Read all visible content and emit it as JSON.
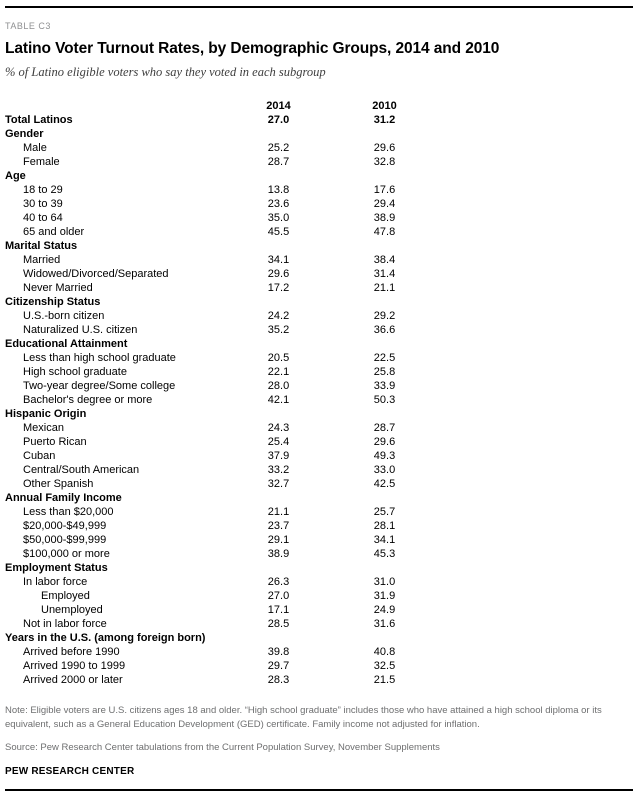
{
  "page": {
    "table_label": "TABLE C3",
    "note": "Note: Eligible voters are U.S. citizens ages 18 and older. “High school graduate” includes those who have attained a high school diploma or its equivalent, such as a General Education Development (GED) certificate. Family income not adjusted for inflation.",
    "source": "Source: Pew Research Center tabulations from the Current Population Survey, November Supplements",
    "footer_brand": "PEW RESEARCH CENTER"
  },
  "chart_data": {
    "type": "table",
    "title": "Latino Voter Turnout Rates, by Demographic Groups, 2014 and 2010",
    "subtitle": "% of Latino eligible voters who say they voted in each subgroup",
    "columns": [
      "2014",
      "2010"
    ],
    "rows": [
      {
        "label": "Total Latinos",
        "style": "total",
        "values": [
          "27.0",
          "31.2"
        ]
      },
      {
        "label": "Gender",
        "style": "group",
        "values": null
      },
      {
        "label": "Male",
        "style": "item",
        "values": [
          "25.2",
          "29.6"
        ]
      },
      {
        "label": "Female",
        "style": "item",
        "values": [
          "28.7",
          "32.8"
        ]
      },
      {
        "label": "Age",
        "style": "group",
        "values": null
      },
      {
        "label": "18 to 29",
        "style": "item",
        "values": [
          "13.8",
          "17.6"
        ]
      },
      {
        "label": "30 to 39",
        "style": "item",
        "values": [
          "23.6",
          "29.4"
        ]
      },
      {
        "label": "40 to 64",
        "style": "item",
        "values": [
          "35.0",
          "38.9"
        ]
      },
      {
        "label": "65 and older",
        "style": "item",
        "values": [
          "45.5",
          "47.8"
        ]
      },
      {
        "label": "Marital Status",
        "style": "group",
        "values": null
      },
      {
        "label": "Married",
        "style": "item",
        "values": [
          "34.1",
          "38.4"
        ]
      },
      {
        "label": "Widowed/Divorced/Separated",
        "style": "item",
        "values": [
          "29.6",
          "31.4"
        ]
      },
      {
        "label": "Never Married",
        "style": "item",
        "values": [
          "17.2",
          "21.1"
        ]
      },
      {
        "label": "Citizenship Status",
        "style": "group",
        "values": null
      },
      {
        "label": "U.S.-born citizen",
        "style": "item",
        "values": [
          "24.2",
          "29.2"
        ]
      },
      {
        "label": "Naturalized U.S. citizen",
        "style": "item",
        "values": [
          "35.2",
          "36.6"
        ]
      },
      {
        "label": "Educational Attainment",
        "style": "group",
        "values": null
      },
      {
        "label": "Less than high school graduate",
        "style": "item",
        "values": [
          "20.5",
          "22.5"
        ]
      },
      {
        "label": "High school graduate",
        "style": "item",
        "values": [
          "22.1",
          "25.8"
        ]
      },
      {
        "label": "Two-year degree/Some college",
        "style": "item",
        "values": [
          "28.0",
          "33.9"
        ]
      },
      {
        "label": "Bachelor's degree or more",
        "style": "item",
        "values": [
          "42.1",
          "50.3"
        ]
      },
      {
        "label": "Hispanic Origin",
        "style": "group",
        "values": null
      },
      {
        "label": "Mexican",
        "style": "item",
        "values": [
          "24.3",
          "28.7"
        ]
      },
      {
        "label": "Puerto Rican",
        "style": "item",
        "values": [
          "25.4",
          "29.6"
        ]
      },
      {
        "label": "Cuban",
        "style": "item",
        "values": [
          "37.9",
          "49.3"
        ]
      },
      {
        "label": "Central/South American",
        "style": "item",
        "values": [
          "33.2",
          "33.0"
        ]
      },
      {
        "label": "Other Spanish",
        "style": "item",
        "values": [
          "32.7",
          "42.5"
        ]
      },
      {
        "label": "Annual Family Income",
        "style": "group",
        "values": null
      },
      {
        "label": "Less than $20,000",
        "style": "item",
        "values": [
          "21.1",
          "25.7"
        ]
      },
      {
        "label": "$20,000-$49,999",
        "style": "item",
        "values": [
          "23.7",
          "28.1"
        ]
      },
      {
        "label": "$50,000-$99,999",
        "style": "item",
        "values": [
          "29.1",
          "34.1"
        ]
      },
      {
        "label": "$100,000 or more",
        "style": "item",
        "values": [
          "38.9",
          "45.3"
        ]
      },
      {
        "label": "Employment Status",
        "style": "group",
        "values": null
      },
      {
        "label": "In labor force",
        "style": "item",
        "values": [
          "26.3",
          "31.0"
        ]
      },
      {
        "label": "Employed",
        "style": "subitem",
        "values": [
          "27.0",
          "31.9"
        ]
      },
      {
        "label": "Unemployed",
        "style": "subitem",
        "values": [
          "17.1",
          "24.9"
        ]
      },
      {
        "label": "Not in labor force",
        "style": "item",
        "values": [
          "28.5",
          "31.6"
        ]
      },
      {
        "label": "Years in the U.S. (among foreign born)",
        "style": "group",
        "values": null
      },
      {
        "label": "Arrived before 1990",
        "style": "item",
        "values": [
          "39.8",
          "40.8"
        ]
      },
      {
        "label": "Arrived 1990 to 1999",
        "style": "item",
        "values": [
          "29.7",
          "32.5"
        ]
      },
      {
        "label": "Arrived 2000 or later",
        "style": "item",
        "values": [
          "28.3",
          "21.5"
        ]
      }
    ]
  }
}
